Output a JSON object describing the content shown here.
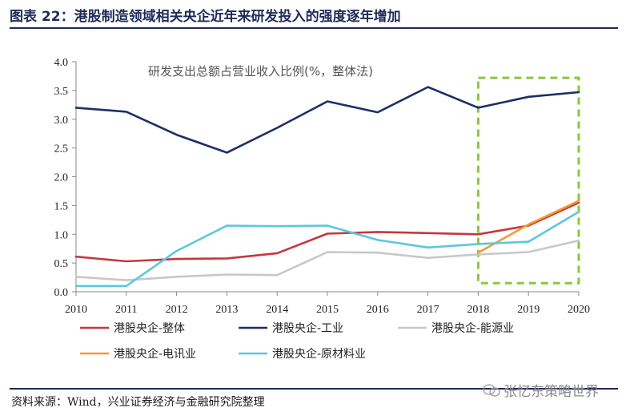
{
  "figure": {
    "title": "图表 22：港股制造领域相关央企近年来研发投入的强度逐年增加",
    "source": "资料来源：Wind，兴业证券经济与金融研究院整理",
    "watermark": "张忆东策略世界"
  },
  "chart_data": {
    "type": "line",
    "title": "研发支出总额占营业收入比例(%，整体法)",
    "xlabel": "",
    "ylabel": "",
    "categories": [
      "2010",
      "2011",
      "2012",
      "2013",
      "2014",
      "2015",
      "2016",
      "2017",
      "2018",
      "2019",
      "2020"
    ],
    "ylim": [
      0,
      4.0
    ],
    "yticks": [
      "0.0",
      "0.5",
      "1.0",
      "1.5",
      "2.0",
      "2.5",
      "3.0",
      "3.5",
      "4.0"
    ],
    "grid": false,
    "legend_position": "bottom",
    "series": [
      {
        "name": "港股央企-整体",
        "color": "#c8363c",
        "values": [
          0.61,
          0.53,
          0.57,
          0.58,
          0.67,
          1.01,
          1.04,
          1.02,
          1.0,
          1.15,
          1.55
        ]
      },
      {
        "name": "港股央企-工业",
        "color": "#1e2f66",
        "values": [
          3.2,
          3.13,
          2.73,
          2.42,
          2.85,
          3.31,
          3.12,
          3.56,
          3.2,
          3.39,
          3.47
        ]
      },
      {
        "name": "港股央企-能源业",
        "color": "#c8c8c8",
        "values": [
          0.26,
          0.2,
          0.26,
          0.3,
          0.29,
          0.69,
          0.68,
          0.59,
          0.65,
          0.69,
          0.89
        ]
      },
      {
        "name": "港股央企-电讯业",
        "color": "#f39a32",
        "values": [
          null,
          null,
          null,
          null,
          null,
          null,
          null,
          null,
          0.68,
          1.17,
          1.58
        ]
      },
      {
        "name": "港股央企-原材料业",
        "color": "#5bc8dc",
        "values": [
          0.1,
          0.1,
          0.71,
          1.15,
          1.14,
          1.15,
          0.9,
          0.77,
          0.83,
          0.87,
          1.39
        ]
      }
    ],
    "highlight": {
      "label": "2018–2020 dashed box",
      "color": "#8cc63f",
      "x_from": "2018",
      "x_to": "2020",
      "y_from": 0.15,
      "y_to": 3.72
    }
  }
}
